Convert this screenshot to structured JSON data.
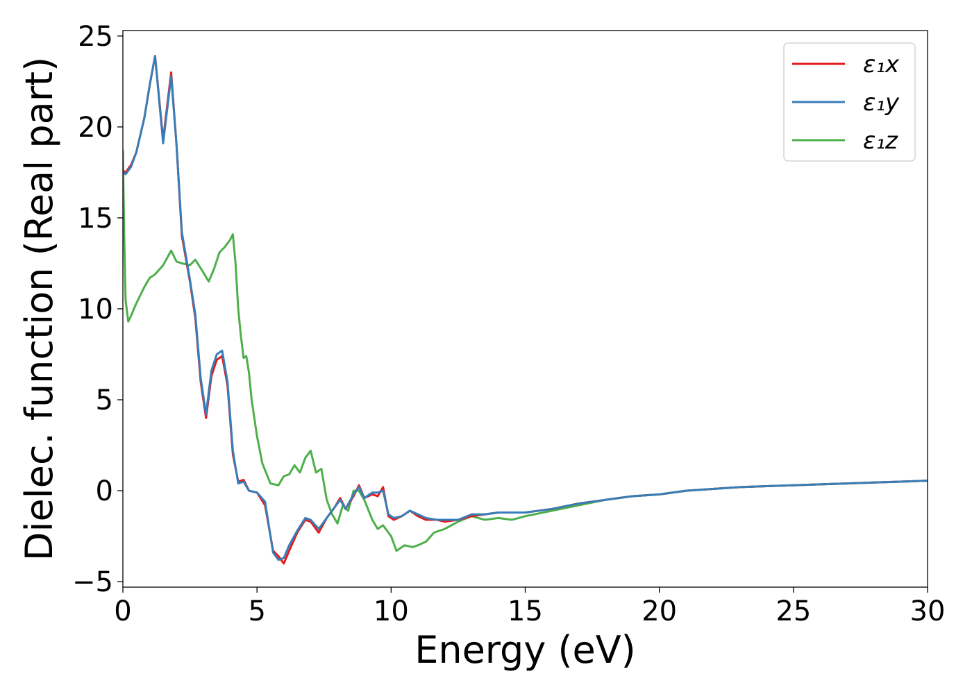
{
  "chart_data": {
    "type": "line",
    "title": "",
    "xlabel": "Energy (eV)",
    "ylabel": "Dielec. function (Real part)",
    "xlim": [
      0,
      30
    ],
    "ylim": [
      -5.3,
      25.3
    ],
    "xticks": [
      0,
      5,
      10,
      15,
      20,
      25,
      30
    ],
    "xtick_labels": [
      "0",
      "5",
      "10",
      "15",
      "20",
      "25",
      "30"
    ],
    "yticks": [
      -5,
      0,
      5,
      10,
      15,
      20,
      25
    ],
    "ytick_labels": [
      "−5",
      "0",
      "5",
      "10",
      "15",
      "20",
      "25"
    ],
    "grid": false,
    "legend": "top-right",
    "series": [
      {
        "name": "ε₁x",
        "color": "#e41a1c",
        "x": [
          0,
          0.1,
          0.3,
          0.5,
          0.8,
          1.0,
          1.2,
          1.5,
          1.8,
          2.0,
          2.2,
          2.5,
          2.7,
          2.9,
          3.1,
          3.3,
          3.5,
          3.7,
          3.9,
          4.1,
          4.3,
          4.5,
          4.7,
          5.0,
          5.3,
          5.6,
          5.8,
          6.0,
          6.2,
          6.5,
          6.8,
          7.0,
          7.3,
          7.6,
          7.9,
          8.1,
          8.3,
          8.6,
          8.8,
          9.0,
          9.3,
          9.5,
          9.7,
          9.9,
          10.1,
          10.4,
          10.7,
          11.0,
          11.3,
          11.7,
          12.0,
          12.5,
          13.0,
          13.5,
          14.0,
          14.5,
          15.0,
          16.0,
          17.0,
          18.0,
          19.0,
          20.0,
          21.0,
          22.0,
          23.0,
          24.0,
          25.0,
          26.0,
          27.0,
          28.0,
          29.0,
          30.0
        ],
        "y": [
          17.6,
          17.5,
          17.9,
          18.6,
          20.5,
          22.3,
          23.9,
          19.3,
          23.0,
          19.0,
          14.0,
          11.5,
          9.5,
          6.0,
          4.0,
          6.3,
          7.2,
          7.4,
          5.8,
          2.0,
          0.5,
          0.6,
          0.0,
          -0.1,
          -0.8,
          -3.3,
          -3.6,
          -4.0,
          -3.3,
          -2.3,
          -1.6,
          -1.7,
          -2.3,
          -1.5,
          -0.9,
          -0.4,
          -1.0,
          -0.3,
          0.3,
          -0.4,
          -0.2,
          -0.3,
          0.2,
          -1.4,
          -1.6,
          -1.4,
          -1.1,
          -1.4,
          -1.6,
          -1.6,
          -1.7,
          -1.6,
          -1.4,
          -1.3,
          -1.2,
          -1.2,
          -1.2,
          -1.0,
          -0.7,
          -0.5,
          -0.3,
          -0.2,
          0.0,
          0.1,
          0.2,
          0.25,
          0.3,
          0.35,
          0.4,
          0.45,
          0.5,
          0.55
        ]
      },
      {
        "name": "ε₁y",
        "color": "#377eb8",
        "x": [
          0,
          0.1,
          0.3,
          0.5,
          0.8,
          1.0,
          1.2,
          1.5,
          1.8,
          2.0,
          2.2,
          2.5,
          2.7,
          2.9,
          3.1,
          3.3,
          3.5,
          3.7,
          3.9,
          4.1,
          4.3,
          4.5,
          4.7,
          5.0,
          5.3,
          5.6,
          5.8,
          6.0,
          6.2,
          6.5,
          6.8,
          7.0,
          7.3,
          7.6,
          7.9,
          8.1,
          8.3,
          8.6,
          8.8,
          9.0,
          9.3,
          9.5,
          9.7,
          9.9,
          10.1,
          10.4,
          10.7,
          11.0,
          11.3,
          11.7,
          12.0,
          12.5,
          13.0,
          13.5,
          14.0,
          14.5,
          15.0,
          16.0,
          17.0,
          18.0,
          19.0,
          20.0,
          21.0,
          22.0,
          23.0,
          24.0,
          25.0,
          26.0,
          27.0,
          28.0,
          29.0,
          30.0
        ],
        "y": [
          17.5,
          17.4,
          17.8,
          18.6,
          20.5,
          22.3,
          23.9,
          19.1,
          22.8,
          19.0,
          14.2,
          11.6,
          9.7,
          6.2,
          4.2,
          6.6,
          7.5,
          7.7,
          6.0,
          2.2,
          0.4,
          0.5,
          0.0,
          -0.1,
          -0.6,
          -3.4,
          -3.8,
          -3.7,
          -3.0,
          -2.2,
          -1.5,
          -1.6,
          -2.1,
          -1.5,
          -0.9,
          -0.5,
          -1.0,
          -0.2,
          0.2,
          -0.4,
          -0.1,
          -0.1,
          0.0,
          -1.3,
          -1.5,
          -1.4,
          -1.1,
          -1.3,
          -1.5,
          -1.6,
          -1.6,
          -1.6,
          -1.3,
          -1.3,
          -1.2,
          -1.2,
          -1.2,
          -1.0,
          -0.7,
          -0.5,
          -0.3,
          -0.2,
          0.0,
          0.1,
          0.2,
          0.25,
          0.3,
          0.35,
          0.4,
          0.45,
          0.5,
          0.55
        ]
      },
      {
        "name": "ε₁z",
        "color": "#4daf4a",
        "x": [
          0,
          0.05,
          0.1,
          0.2,
          0.3,
          0.5,
          0.8,
          1.0,
          1.2,
          1.5,
          1.8,
          2.0,
          2.2,
          2.5,
          2.7,
          3.0,
          3.2,
          3.4,
          3.6,
          3.8,
          4.0,
          4.1,
          4.2,
          4.3,
          4.4,
          4.5,
          4.6,
          4.7,
          4.8,
          5.0,
          5.2,
          5.5,
          5.8,
          6.0,
          6.2,
          6.4,
          6.6,
          6.8,
          7.0,
          7.2,
          7.4,
          7.6,
          7.8,
          8.0,
          8.2,
          8.4,
          8.6,
          8.8,
          9.0,
          9.3,
          9.5,
          9.7,
          10.0,
          10.2,
          10.5,
          10.8,
          11.0,
          11.3,
          11.6,
          12.0,
          12.5,
          13.0,
          13.5,
          14.0,
          14.5,
          15.0,
          16.0,
          17.0,
          18.0,
          19.0,
          20.0,
          21.0,
          22.0,
          23.0,
          24.0,
          25.0,
          26.0,
          27.0,
          28.0,
          29.0,
          30.0
        ],
        "y": [
          18.7,
          14.0,
          10.5,
          9.3,
          9.6,
          10.3,
          11.2,
          11.7,
          11.9,
          12.4,
          13.2,
          12.6,
          12.5,
          12.4,
          12.7,
          12.0,
          11.5,
          12.2,
          13.1,
          13.4,
          13.8,
          14.1,
          12.5,
          10.0,
          8.5,
          7.3,
          7.4,
          6.5,
          5.0,
          3.0,
          1.5,
          0.4,
          0.3,
          0.8,
          0.9,
          1.4,
          1.0,
          1.8,
          2.2,
          1.0,
          1.2,
          -0.5,
          -1.3,
          -1.8,
          -0.8,
          -1.1,
          0.0,
          0.0,
          -0.5,
          -1.6,
          -2.1,
          -1.9,
          -2.5,
          -3.3,
          -3.0,
          -3.1,
          -3.0,
          -2.8,
          -2.3,
          -2.1,
          -1.7,
          -1.4,
          -1.6,
          -1.5,
          -1.6,
          -1.4,
          -1.1,
          -0.8,
          -0.5,
          -0.3,
          -0.2,
          0.0,
          0.1,
          0.2,
          0.25,
          0.3,
          0.35,
          0.4,
          0.45,
          0.5,
          0.55
        ]
      }
    ]
  }
}
